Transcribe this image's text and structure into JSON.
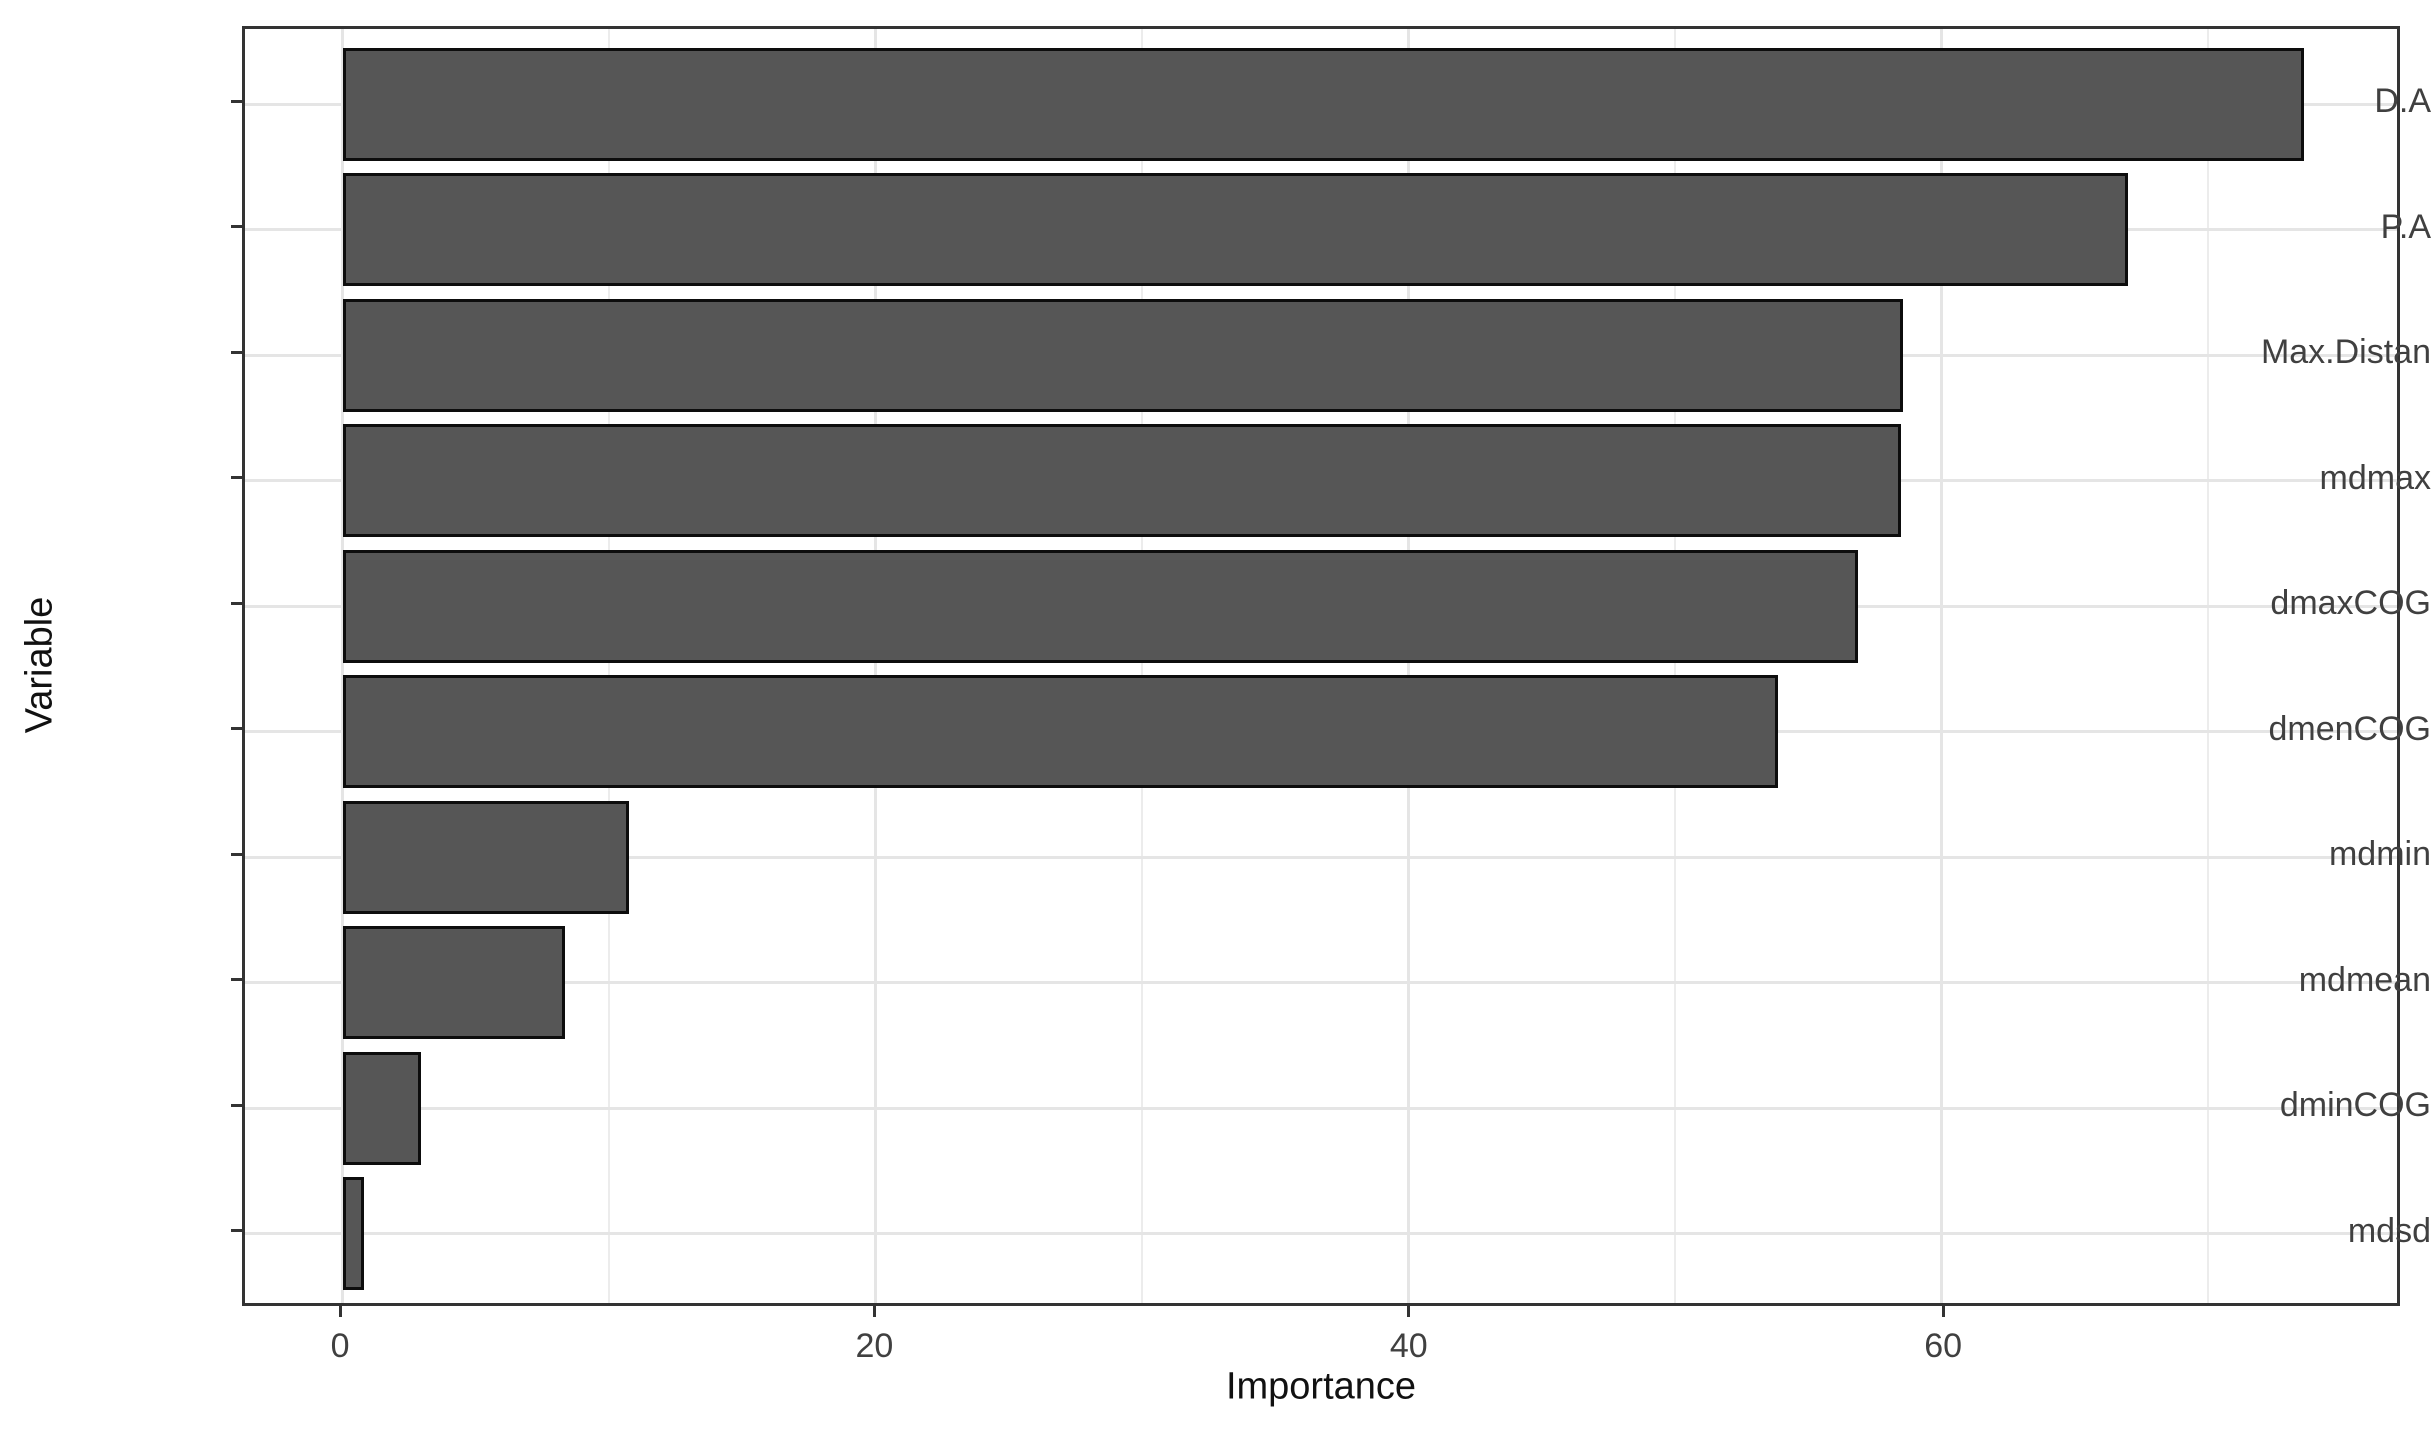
{
  "chart": {
    "y_axis_title": "Variable",
    "x_axis_title": "Importance"
  },
  "chart_data": {
    "type": "bar",
    "orientation": "horizontal",
    "title": "",
    "xlabel": "Importance",
    "ylabel": "Variable",
    "categories": [
      "D.A",
      "P.A",
      "Max.Distan",
      "mdmax",
      "dmaxCOG",
      "dmenCOG",
      "mdmin",
      "mdmean",
      "dminCOG",
      "mdsd"
    ],
    "values": [
      73.4,
      66.8,
      58.4,
      58.3,
      56.7,
      53.7,
      10.7,
      8.3,
      2.9,
      0.8
    ],
    "x_major_ticks": [
      0,
      20,
      40,
      60
    ],
    "x_minor_ticks": [
      10,
      30,
      50,
      70
    ],
    "xlim": [
      -3.67,
      77.1
    ],
    "grid": true,
    "legend": false,
    "theme": "theme_bw",
    "colors": {
      "bar_fill": "#565656",
      "bar_border": "#0d0d0d",
      "panel_border": "#333333",
      "grid_major": "#e5e5e5",
      "grid_minor": "#ececec",
      "tick_label": "#404040",
      "axis_title": "#111111",
      "background": "#ffffff"
    }
  }
}
